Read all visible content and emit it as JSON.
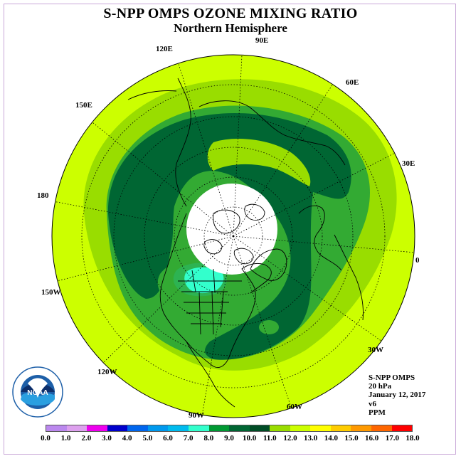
{
  "header": {
    "title": "S-NPP OMPS OZONE MIXING RATIO",
    "subtitle": "Northern Hemisphere"
  },
  "map": {
    "projection": "north-polar-stereographic",
    "longitude_labels": [
      "90E",
      "60E",
      "30E",
      "0",
      "30W",
      "60W",
      "90W",
      "120W",
      "150W",
      "180",
      "150E",
      "120E"
    ],
    "colors": {
      "ocean_background": "#ccff00",
      "band_11": "#99dd00",
      "band_10": "#33aa33",
      "band_9": "#006633",
      "band_8": "#2db352",
      "band_7": "#33ffcc",
      "missing_data": "#ffffff",
      "coastline": "#000000"
    }
  },
  "info": {
    "instrument": "S-NPP OMPS",
    "level": "20 hPa",
    "date": "January 12, 2017",
    "version": "v6",
    "units": "PPM"
  },
  "colorbar": {
    "ticks": [
      "0.0",
      "1.0",
      "2.0",
      "3.0",
      "4.0",
      "5.0",
      "6.0",
      "7.0",
      "8.0",
      "9.0",
      "10.0",
      "11.0",
      "12.0",
      "13.0",
      "14.0",
      "15.0",
      "16.0",
      "17.0",
      "18.0"
    ],
    "colors": [
      "#bb88ee",
      "#dda0ee",
      "#ee00ee",
      "#0000cc",
      "#0066ee",
      "#0099ee",
      "#00bbee",
      "#33ffcc",
      "#009933",
      "#006633",
      "#004d26",
      "#99dd00",
      "#ccff00",
      "#ffff00",
      "#ffcc00",
      "#ff9900",
      "#ff6600",
      "#ff0000",
      "#996633"
    ]
  },
  "logo": {
    "text": "NOAA",
    "ring_text": "NATIONAL OCEANIC AND ATMOSPHERIC ADMINISTRATION · U.S. DEPARTMENT OF COMMERCE ·"
  }
}
